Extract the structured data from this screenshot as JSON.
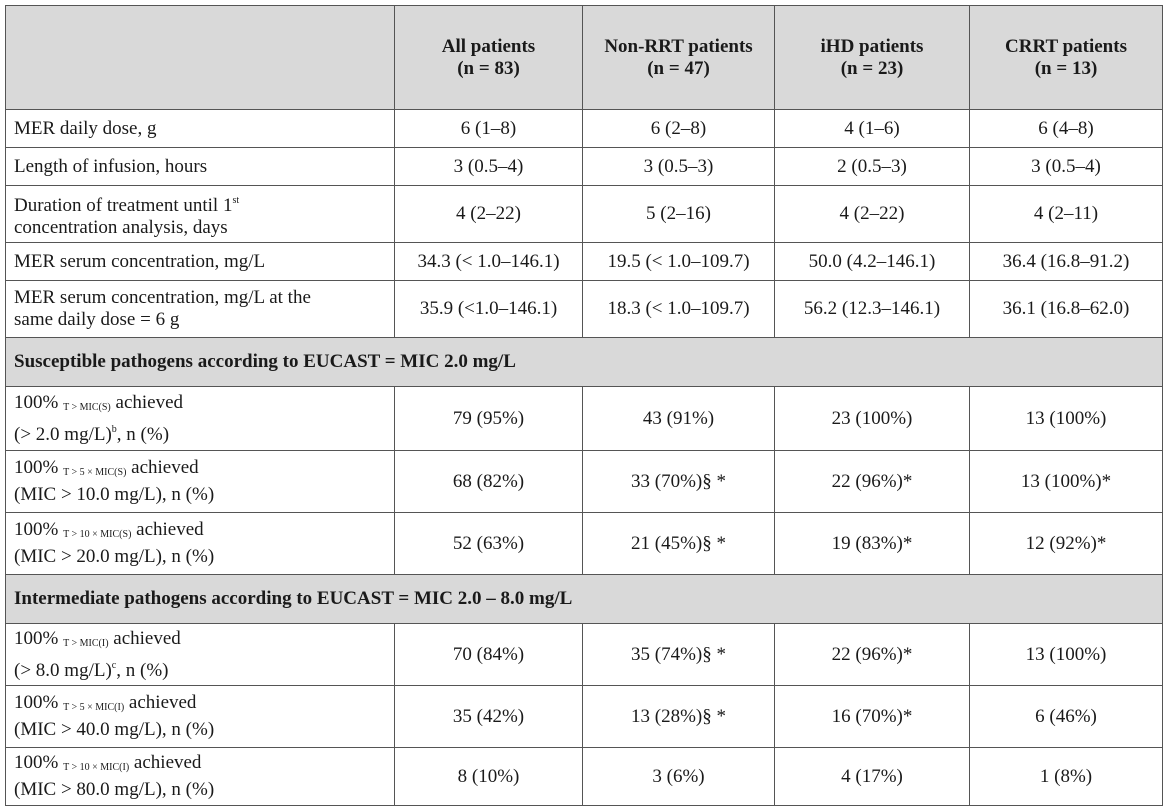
{
  "columns": [
    {
      "name": "All patients",
      "n": "(n = 83)"
    },
    {
      "name": "Non-RRT patients",
      "n": "(n = 47)"
    },
    {
      "name": "iHD patients",
      "n": "(n = 23)"
    },
    {
      "name": "CRRT patients",
      "n": "(n = 13)"
    }
  ],
  "rows_general": [
    {
      "label": "MER daily dose, g",
      "values": [
        "6 (1–8)",
        "6 (2–8)",
        "4 (1–6)",
        "6 (4–8)"
      ]
    },
    {
      "label": "Length of infusion, hours",
      "values": [
        "3 (0.5–4)",
        "3 (0.5–3)",
        "2 (0.5–3)",
        "3 (0.5–4)"
      ]
    },
    {
      "label_line1_pre": "Duration of treatment until 1",
      "label_line1_sup": "st",
      "label_line2": "concentration analysis, days",
      "values": [
        "4 (2–22)",
        "5 (2–16)",
        "4 (2–22)",
        "4 (2–11)"
      ]
    },
    {
      "label": "MER serum concentration, mg/L",
      "values": [
        "34.3 (< 1.0–146.1)",
        "19.5 (< 1.0–109.7)",
        "50.0 (4.2–146.1)",
        "36.4 (16.8–91.2)"
      ]
    },
    {
      "label_line1": "MER serum concentration, mg/L at the",
      "label_line2": "same daily dose = 6 g",
      "values": [
        "35.9 (<1.0–146.1)",
        "18.3 (< 1.0–109.7)",
        "56.2 (12.3–146.1)",
        "36.1 (16.8–62.0)"
      ]
    }
  ],
  "section_susceptible": {
    "title": "Susceptible pathogens according to EUCAST = MIC 2.0 mg/L",
    "rows": [
      {
        "pre": "100%",
        "sub": "T > MIC(S)",
        "post": " achieved",
        "line2_pre": "(> 2.0 mg/L)",
        "line2_sup": "b",
        "line2_post": ", n (%)",
        "values": [
          "79 (95%)",
          "43 (91%)",
          "23 (100%)",
          "13 (100%)"
        ]
      },
      {
        "pre": "100%",
        "sub": "T > 5 × MIC(S)",
        "post": " achieved",
        "line2_pre": "(MIC > 10.0 mg/L), n (%)",
        "line2_sup": "",
        "line2_post": "",
        "values": [
          "68 (82%)",
          "33 (70%)§ *",
          "22 (96%)*",
          "13 (100%)*"
        ]
      },
      {
        "pre": "100%",
        "sub": "T > 10 × MIC(S)",
        "post": " achieved",
        "line2_pre": "(MIC > 20.0 mg/L), n (%)",
        "line2_sup": "",
        "line2_post": "",
        "values": [
          "52 (63%)",
          "21 (45%)§ *",
          "19 (83%)*",
          "12 (92%)*"
        ]
      }
    ]
  },
  "section_intermediate": {
    "title": "Intermediate pathogens according to EUCAST = MIC 2.0 – 8.0 mg/L",
    "rows": [
      {
        "pre": "100%",
        "sub": "T > MIC(I)",
        "post": " achieved",
        "line2_pre": "(> 8.0 mg/L)",
        "line2_sup": "c",
        "line2_post": ", n (%)",
        "values": [
          "70 (84%)",
          "35 (74%)§ *",
          "22 (96%)*",
          "13 (100%)"
        ]
      },
      {
        "pre": "100%",
        "sub": "T > 5 × MIC(I)",
        "post": " achieved",
        "line2_pre": "(MIC > 40.0 mg/L), n (%)",
        "line2_sup": "",
        "line2_post": "",
        "values": [
          "35 (42%)",
          "13 (28%)§ *",
          "16 (70%)*",
          "6 (46%)"
        ]
      },
      {
        "pre": "100%",
        "sub": "T > 10 × MIC(I)",
        "post": " achieved",
        "line2_pre": "(MIC > 80.0 mg/L), n (%)",
        "line2_sup": "",
        "line2_post": "",
        "values": [
          "8 (10%)",
          "3 (6%)",
          "4 (17%)",
          "1 (8%)"
        ]
      }
    ]
  }
}
